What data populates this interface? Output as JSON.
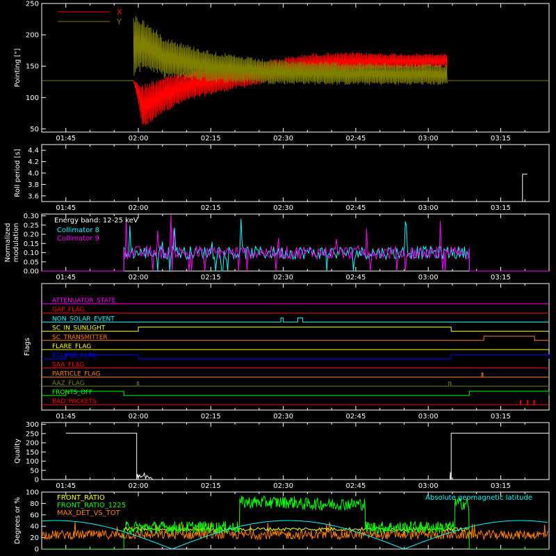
{
  "chart_data": [
    {
      "id": "pointing",
      "type": "line",
      "ylabel": "Pointing [\"]",
      "ylim": [
        45,
        250
      ],
      "yticks": [
        "50",
        "100",
        "150",
        "200",
        "250"
      ],
      "x_tick_labels": [
        "01:45",
        "02:00",
        "02:15",
        "02:30",
        "02:45",
        "03:00",
        "03:15"
      ],
      "legend": {
        "position": "top-left",
        "entries": [
          "X",
          "Y"
        ]
      },
      "series": [
        {
          "name": "X",
          "color": "#ff0000",
          "envelope_time": [
            "01:59",
            "02:01",
            "02:05",
            "02:10",
            "02:15",
            "02:20",
            "02:25",
            "02:30",
            "02:35",
            "02:40",
            "02:45",
            "02:50",
            "02:55",
            "03:00",
            "03:04"
          ],
          "upper": [
            127,
            122,
            135,
            142,
            148,
            152,
            157,
            164,
            170,
            172,
            172,
            171,
            170,
            170,
            170
          ],
          "lower": [
            127,
            48,
            75,
            93,
            104,
            113,
            120,
            127,
            134,
            140,
            143,
            145,
            146,
            147,
            148
          ],
          "flat_value": 127
        },
        {
          "name": "Y",
          "color": "#808000",
          "envelope_time": [
            "01:59",
            "02:01",
            "02:05",
            "02:10",
            "02:15",
            "02:20",
            "02:25",
            "02:30",
            "02:35",
            "02:40",
            "02:45",
            "02:50",
            "02:55",
            "03:00",
            "03:04"
          ],
          "upper": [
            236,
            225,
            200,
            185,
            175,
            168,
            162,
            160,
            158,
            157,
            156,
            155,
            154,
            154,
            153
          ],
          "lower": [
            127,
            147,
            132,
            128,
            124,
            122,
            122,
            121,
            121,
            120,
            120,
            120,
            120,
            120,
            120
          ],
          "flat_value": 127
        }
      ]
    },
    {
      "id": "roll",
      "type": "line",
      "ylabel": "Roll period [s]",
      "ylim": [
        3.5,
        4.5
      ],
      "yticks": [
        "3.6",
        "3.8",
        "4.0",
        "4.2",
        "4.4"
      ],
      "x_tick_labels": [
        "01:45",
        "02:00",
        "02:15",
        "02:30",
        "02:45",
        "03:00",
        "03:15"
      ],
      "series": [
        {
          "color": "#ffffff",
          "time": [
            "03:19:30",
            "03:20:30"
          ],
          "values": [
            3.98,
            3.98
          ]
        }
      ]
    },
    {
      "id": "modulation",
      "type": "line",
      "ylabel": "Normalized modulation",
      "ylim": [
        0,
        0.31
      ],
      "yticks": [
        "0.00",
        "0.05",
        "0.10",
        "0.15",
        "0.20",
        "0.25",
        "0.30"
      ],
      "x_tick_labels": [
        "01:45",
        "02:00",
        "02:15",
        "02:30",
        "02:45",
        "03:00",
        "03:15"
      ],
      "annotation": "Energy band: 12-25 keV",
      "legend": {
        "position": "top-left",
        "entries": [
          "Collimator 8",
          "Collimator 9"
        ]
      },
      "range": [
        "01:57:00",
        "03:08:30"
      ],
      "series": [
        {
          "name": "Collimator 8",
          "color": "#00ffff",
          "typical": 0.1,
          "spread": 0.045
        },
        {
          "name": "Collimator 9",
          "color": "#ff00ff",
          "typical": 0.1,
          "spread": 0.045
        }
      ]
    },
    {
      "id": "flags",
      "type": "line",
      "ylabel": "Flags",
      "x_tick_labels": [
        "01:45",
        "02:00",
        "02:15",
        "02:30",
        "02:45",
        "03:00",
        "03:15"
      ],
      "series": [
        {
          "name": "ATTENUATOR_STATE",
          "color": "#ff00ff",
          "segments": []
        },
        {
          "name": "GAP_FLAG",
          "color": "#ff0000",
          "segments": []
        },
        {
          "name": "NON_SOLAR_EVENT",
          "color": "#00ffff",
          "segments": [
            [
              "02:29:30",
              "02:30:00"
            ],
            [
              "02:33:00",
              "02:34:00"
            ]
          ]
        },
        {
          "name": "SC_IN_SUNLIGHT",
          "color": "#ffff00",
          "segments": [
            [
              "02:00:00",
              "03:04:45"
            ]
          ]
        },
        {
          "name": "SC_TRANSMITTER",
          "color": "#ff8000",
          "segments": [
            [
              "03:11:30",
              "03:22:00"
            ]
          ]
        },
        {
          "name": "FLARE_FLAG",
          "color": "#ffff00",
          "segments": []
        },
        {
          "name": "ECLIPSE_FLAG",
          "color": "#0000ff",
          "segments": [
            [
              "01:45:00",
              "02:00:00"
            ],
            [
              "03:04:45",
              "03:25:00"
            ]
          ]
        },
        {
          "name": "SAA_FLAG",
          "color": "#ff0000",
          "segments": []
        },
        {
          "name": "PARTICLE_FLAG",
          "color": "#ff8000",
          "segments": [
            [
              "03:11:05",
              "03:11:20"
            ]
          ]
        },
        {
          "name": "AAZ_FLAG",
          "color": "#808000",
          "segments": [
            [
              "01:59:45",
              "02:00:05"
            ],
            [
              "03:04:15",
              "03:04:40"
            ]
          ]
        },
        {
          "name": "FRONTS_OFF",
          "color": "#00ff00",
          "segments": [
            [
              "01:45:00",
              "01:57:00"
            ],
            [
              "03:08:30",
              "03:25:00"
            ]
          ]
        },
        {
          "name": "BAD_PACKETS",
          "color": "#ff0000",
          "segments": [
            [
              "03:19:00",
              "03:19:10"
            ],
            [
              "03:20:30",
              "03:20:40"
            ],
            [
              "03:21:50",
              "03:22:00"
            ]
          ]
        }
      ]
    },
    {
      "id": "quality",
      "type": "line",
      "ylabel": "Quality",
      "ylim": [
        0,
        310
      ],
      "yticks": [
        "0",
        "50",
        "100",
        "150",
        "200",
        "250",
        "300"
      ],
      "x_tick_labels": [
        "01:45",
        "02:00",
        "02:15",
        "02:30",
        "02:45",
        "03:00",
        "03:15"
      ],
      "series": [
        {
          "color": "#ffffff",
          "time": [
            "01:45:00",
            "01:59:40",
            "01:59:40",
            "01:59:50",
            "02:00:00",
            "02:00:15",
            "02:00:30",
            "02:00:45",
            "02:01:00",
            "02:01:15",
            "02:01:30",
            "02:01:45",
            "02:02:00",
            "02:02:15",
            "02:02:30",
            "02:03:00",
            "03:04:30",
            "03:04:35",
            "03:04:40",
            "03:04:45",
            "03:04:45",
            "03:25:00"
          ],
          "values": [
            252,
            252,
            0,
            30,
            8,
            25,
            12,
            18,
            20,
            35,
            5,
            22,
            15,
            6,
            12,
            0,
            0,
            40,
            10,
            0,
            252,
            252
          ]
        }
      ]
    },
    {
      "id": "ratios",
      "type": "line",
      "ylabel": "Degrees or %",
      "ylim": [
        0,
        100
      ],
      "yticks": [
        "0",
        "20",
        "40",
        "60",
        "80",
        "100"
      ],
      "legend": {
        "position": "top-left",
        "entries": [
          "FRONT_RATIO",
          "FRONT_RATIO_1225",
          "MAX_DET_VS_TOT"
        ]
      },
      "annotation": "Absolute geomagnetic latitude",
      "series": [
        {
          "name": "FRONT_RATIO",
          "color": "#ffff00",
          "typical": 35
        },
        {
          "name": "FRONT_RATIO_1225",
          "color": "#00ff00",
          "levels": [
            [
              "01:57:00",
              "02:21:00",
              38
            ],
            [
              "02:21:00",
              "02:33:00",
              82
            ],
            [
              "02:33:00",
              "02:47:00",
              79
            ],
            [
              "02:47:00",
              "03:05:30",
              38
            ],
            [
              "03:05:30",
              "03:08:30",
              80
            ]
          ]
        },
        {
          "name": "MAX_DET_VS_TOT",
          "color": "#ff8000",
          "typical": 25
        },
        {
          "name": "Absolute geomagnetic latitude",
          "color": "#00ffff",
          "amplitude": 50,
          "period_minutes": 96,
          "zero_time": "02:07:00"
        }
      ]
    }
  ]
}
